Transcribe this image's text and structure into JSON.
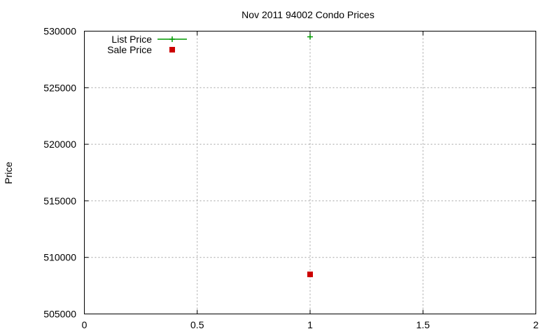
{
  "chart_data": {
    "type": "scatter",
    "title": "Nov 2011 94002 Condo Prices",
    "xlabel": "",
    "ylabel": "Price",
    "xlim": [
      0,
      2
    ],
    "ylim": [
      505000,
      530000
    ],
    "x_ticks": [
      0,
      0.5,
      1,
      1.5,
      2
    ],
    "x_tick_labels": [
      "0",
      "0.5",
      "1",
      "1.5",
      "2"
    ],
    "y_ticks": [
      505000,
      510000,
      515000,
      520000,
      525000,
      530000
    ],
    "y_tick_labels": [
      "505000",
      "510000",
      "515000",
      "520000",
      "525000",
      "530000"
    ],
    "grid": true,
    "legend_position": "top-left",
    "series": [
      {
        "name": "List Price",
        "marker": "plus",
        "color": "#009900",
        "points": [
          {
            "x": 1,
            "y": 529500
          }
        ]
      },
      {
        "name": "Sale Price",
        "marker": "square",
        "color": "#cc0000",
        "points": [
          {
            "x": 1,
            "y": 508500
          }
        ]
      }
    ]
  }
}
